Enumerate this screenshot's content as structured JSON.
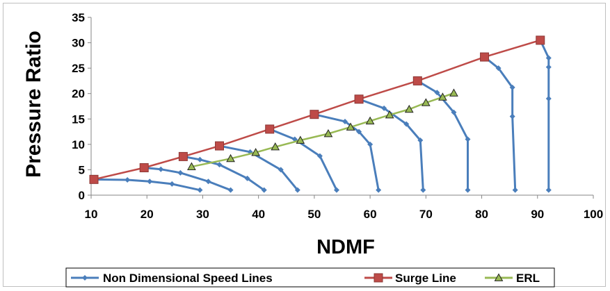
{
  "chart_data": {
    "type": "line",
    "title": "",
    "xlabel": "NDMF",
    "ylabel": "Pressure Ratio",
    "xlim": [
      10,
      100
    ],
    "ylim": [
      0,
      35
    ],
    "xticks": [
      10,
      20,
      30,
      40,
      50,
      60,
      70,
      80,
      90,
      100
    ],
    "yticks": [
      0,
      5,
      10,
      15,
      20,
      25,
      30,
      35
    ],
    "grid": false,
    "legend_position": "bottom",
    "series": [
      {
        "name": "Non Dimensional Speed Lines",
        "color": "#4a7ebb",
        "marker": "diamond",
        "lines": [
          [
            [
              10.5,
              3.1
            ],
            [
              16.5,
              3.0
            ],
            [
              20.5,
              2.7
            ],
            [
              24.5,
              2.2
            ],
            [
              29.5,
              1.0
            ]
          ],
          [
            [
              19.5,
              5.4
            ],
            [
              22.5,
              5.1
            ],
            [
              26,
              4.4
            ],
            [
              31,
              2.7
            ],
            [
              35,
              1.0
            ]
          ],
          [
            [
              26.5,
              7.6
            ],
            [
              29.5,
              7.0
            ],
            [
              33,
              6.0
            ],
            [
              38,
              3.3
            ],
            [
              41,
              1.0
            ]
          ],
          [
            [
              33,
              9.7
            ],
            [
              38.5,
              8.5
            ],
            [
              44,
              5.0
            ],
            [
              47,
              1.0
            ]
          ],
          [
            [
              42,
              13.0
            ],
            [
              46.5,
              11.0
            ],
            [
              51,
              7.7
            ],
            [
              54,
              1.0
            ]
          ],
          [
            [
              50,
              15.9
            ],
            [
              55.5,
              14.5
            ],
            [
              58,
              12.5
            ],
            [
              60,
              10.0
            ],
            [
              61.5,
              1.0
            ]
          ],
          [
            [
              58,
              18.9
            ],
            [
              62.5,
              17.1
            ],
            [
              66.5,
              14.0
            ],
            [
              69,
              10.8
            ],
            [
              69.5,
              1.0
            ]
          ],
          [
            [
              68.5,
              22.5
            ],
            [
              72,
              20.2
            ],
            [
              75,
              16.3
            ],
            [
              77.5,
              11.0
            ],
            [
              77.5,
              1.0
            ]
          ],
          [
            [
              80.5,
              27.2
            ],
            [
              83,
              25.0
            ],
            [
              85.5,
              21.2
            ],
            [
              85.5,
              15.5
            ],
            [
              86,
              1.0
            ]
          ],
          [
            [
              90.5,
              30.5
            ],
            [
              92,
              27.0
            ],
            [
              92,
              25.2
            ],
            [
              92,
              19.0
            ],
            [
              92,
              1.0
            ]
          ]
        ]
      },
      {
        "name": "Surge Line",
        "color": "#be4b48",
        "marker": "square",
        "x": [
          10.5,
          19.5,
          26.5,
          33,
          42,
          50,
          58,
          68.5,
          80.5,
          90.5
        ],
        "y": [
          3.1,
          5.4,
          7.6,
          9.7,
          13.0,
          15.9,
          18.9,
          22.5,
          27.2,
          30.5
        ]
      },
      {
        "name": "ERL",
        "color": "#98b954",
        "marker": "triangle",
        "x": [
          28,
          35,
          39.5,
          43,
          47.5,
          52.5,
          56.5,
          60,
          63.5,
          67,
          70,
          73,
          75
        ],
        "y": [
          5.6,
          7.2,
          8.4,
          9.5,
          10.8,
          12.1,
          13.4,
          14.6,
          15.8,
          16.9,
          18.2,
          19.3,
          20.1
        ]
      }
    ]
  }
}
